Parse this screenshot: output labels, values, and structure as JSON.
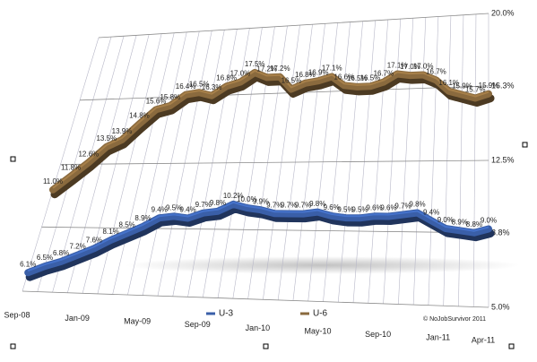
{
  "chart_data": {
    "type": "line",
    "categories": [
      "Sep-08",
      null,
      null,
      null,
      "Jan-09",
      null,
      null,
      null,
      "May-09",
      null,
      null,
      null,
      "Sep-09",
      null,
      null,
      null,
      "Jan-10",
      null,
      null,
      null,
      "May-10",
      null,
      null,
      null,
      "Sep-10",
      null,
      null,
      null,
      "Jan-11",
      null,
      null,
      "Apr-11"
    ],
    "series": [
      {
        "name": "U-3",
        "color": "#3a5fa8",
        "values": [
          6.1,
          6.5,
          6.8,
          7.2,
          7.6,
          8.1,
          8.5,
          8.9,
          9.4,
          9.5,
          9.4,
          9.7,
          9.8,
          10.2,
          10.0,
          9.9,
          9.7,
          9.7,
          9.7,
          9.8,
          9.6,
          9.5,
          9.5,
          9.6,
          9.6,
          9.7,
          9.8,
          9.4,
          9.0,
          8.9,
          8.8,
          9.0
        ],
        "value_labels": [
          "6.1%",
          "6.5%",
          "6.8%",
          "7.2%",
          "7.6%",
          "8.1%",
          "8.5%",
          "8.9%",
          "9.4%",
          "9.5%",
          "9.4%",
          "9.7%",
          "9.8%",
          "10.2%",
          "10.0%",
          "9.9%",
          "9.7%",
          "9.7%",
          "9.7%",
          "9.8%",
          "9.6%",
          "9.5%",
          "9.5%",
          "9.6%",
          "9.6%",
          "9.7%",
          "9.8%",
          "9.4%",
          "9.0%",
          "8.9%",
          "8.8%",
          "9.0%"
        ]
      },
      {
        "name": "U-6",
        "color": "#8a6a3e",
        "values": [
          11.0,
          11.8,
          12.6,
          13.5,
          13.9,
          14.8,
          15.6,
          15.8,
          16.4,
          16.5,
          16.3,
          16.8,
          17.0,
          17.5,
          17.2,
          17.2,
          16.5,
          16.8,
          16.9,
          17.1,
          16.6,
          16.5,
          16.5,
          16.7,
          17.1,
          17.0,
          17.0,
          16.7,
          16.1,
          15.9,
          15.7,
          15.9
        ],
        "value_labels": [
          "11.0%",
          "11.8%",
          "12.6%",
          "13.5%",
          "13.9%",
          "14.8%",
          "15.6%",
          "15.8%",
          "16.4%",
          "16.5%",
          "16.3%",
          "16.8%",
          "17.0%",
          "17.5%",
          "17.2%",
          "17.2%",
          "16.5%",
          "16.8%",
          "16.9%",
          "17.1%",
          "16.6%",
          "16.5%",
          "16.5%",
          "16.7%",
          "17.1%",
          "17.0%",
          "17.0%",
          "16.7%",
          "16.1%",
          "15.9%",
          "15.7%",
          "15.9%"
        ]
      }
    ],
    "ylim": [
      5.0,
      20.0
    ],
    "yticks": [
      {
        "value": 5.0,
        "label": "5.0%"
      },
      {
        "value": 8.8,
        "label": "8.8%"
      },
      {
        "value": 12.5,
        "label": "12.5%"
      },
      {
        "value": 16.3,
        "label": "16.3%"
      },
      {
        "value": 20.0,
        "label": "20.0%"
      }
    ],
    "grid": true,
    "legend": "bottom",
    "note": "© NoJobSurvivor 2011"
  }
}
